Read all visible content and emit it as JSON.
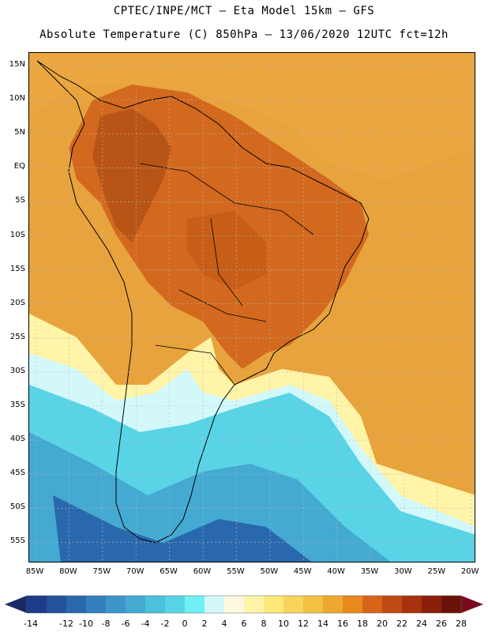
{
  "header": {
    "line1": "CPTEC/INPE/MCT –  Eta Model 15km – GFS",
    "line2": "Absolute Temperature (C) 850hPa – 13/06/2020 12UTC fct=12h"
  },
  "axes": {
    "lat_labels": [
      "15N",
      "10N",
      "5N",
      "EQ",
      "5S",
      "10S",
      "15S",
      "20S",
      "25S",
      "30S",
      "35S",
      "40S",
      "45S",
      "50S",
      "55S"
    ],
    "lon_labels": [
      "85W",
      "80W",
      "75W",
      "70W",
      "65W",
      "60W",
      "55W",
      "50W",
      "45W",
      "40W",
      "35W",
      "30W",
      "25W",
      "20W"
    ]
  },
  "colorbar": {
    "labels": [
      "-14",
      "-12",
      "-10",
      "-8",
      "-6",
      "-4",
      "-2",
      "0",
      "2",
      "4",
      "6",
      "8",
      "10",
      "12",
      "14",
      "16",
      "18",
      "20",
      "22",
      "24",
      "26",
      "28"
    ],
    "colors": [
      "#1e3c8c",
      "#24529c",
      "#2a68ae",
      "#3480be",
      "#3c96c8",
      "#44aad2",
      "#4cc0dc",
      "#58d4e6",
      "#6ef0f4",
      "#d2f8fa",
      "#fff8e0",
      "#fff4a8",
      "#fce878",
      "#f8d45c",
      "#f2c042",
      "#eda830",
      "#e88a1c",
      "#d8641a",
      "#c04a14",
      "#a8320e",
      "#8a200a",
      "#6a1208"
    ],
    "low_arrow_color": "#1a2a66",
    "high_arrow_color": "#7a0a1e"
  },
  "map_colors": {
    "ocean_warm": "#e8a33c",
    "land_hot": "#d2691e",
    "land_hotter": "#b85516",
    "andes_cold": "#f2cc55",
    "south_cold": "#58d4e6",
    "south_colder": "#3c96c8",
    "south_coldest": "#2a68ae",
    "transition": "#d2f8fa",
    "cream": "#fff4a8",
    "border": "#000000"
  }
}
